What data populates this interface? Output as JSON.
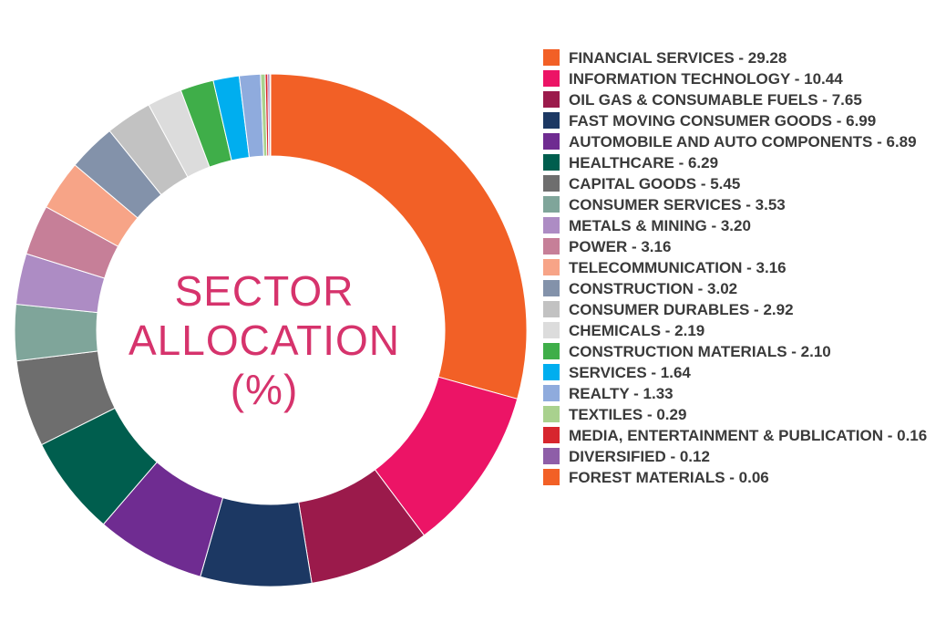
{
  "center_title_lines": [
    "SECTOR",
    "ALLOCATION",
    "(%)"
  ],
  "chart_data": {
    "type": "pie",
    "variant": "donut",
    "title": "SECTOR ALLOCATION (%)",
    "legend_position": "right",
    "slices": [
      {
        "label": "FINANCIAL SERVICES - 29.28",
        "name": "FINANCIAL SERVICES",
        "value": 29.28,
        "color": "#f26026"
      },
      {
        "label": "INFORMATION TECHNOLOGY - 10.44",
        "name": "INFORMATION TECHNOLOGY",
        "value": 10.44,
        "color": "#ec1466"
      },
      {
        "label": "OIL GAS & CONSUMABLE FUELS - 7.65",
        "name": "OIL GAS & CONSUMABLE FUELS",
        "value": 7.65,
        "color": "#9b1a4b"
      },
      {
        "label": "FAST MOVING CONSUMER GOODS - 6.99",
        "name": "FAST MOVING CONSUMER GOODS",
        "value": 6.99,
        "color": "#1c3863"
      },
      {
        "label": "AUTOMOBILE AND AUTO COMPONENTS - 6.89",
        "name": "AUTOMOBILE AND AUTO COMPONENTS",
        "value": 6.89,
        "color": "#6f2c91"
      },
      {
        "label": "HEALTHCARE - 6.29",
        "name": "HEALTHCARE",
        "value": 6.29,
        "color": "#005e4e"
      },
      {
        "label": "CAPITAL GOODS - 5.45",
        "name": "CAPITAL GOODS",
        "value": 5.45,
        "color": "#6e6e6e"
      },
      {
        "label": "CONSUMER SERVICES - 3.53",
        "name": "CONSUMER SERVICES",
        "value": 3.53,
        "color": "#7fa59a"
      },
      {
        "label": "METALS & MINING - 3.20",
        "name": "METALS & MINING",
        "value": 3.2,
        "color": "#ad8cc4"
      },
      {
        "label": "POWER - 3.16",
        "name": "POWER",
        "value": 3.16,
        "color": "#c67f98"
      },
      {
        "label": "TELECOMMUNICATION - 3.16",
        "name": "TELECOMMUNICATION",
        "value": 3.16,
        "color": "#f7a487"
      },
      {
        "label": "CONSTRUCTION - 3.02",
        "name": "CONSTRUCTION",
        "value": 3.02,
        "color": "#8392aa"
      },
      {
        "label": "CONSUMER DURABLES - 2.92",
        "name": "CONSUMER DURABLES",
        "value": 2.92,
        "color": "#c2c2c2"
      },
      {
        "label": "CHEMICALS - 2.19",
        "name": "CHEMICALS",
        "value": 2.19,
        "color": "#dcdcdc"
      },
      {
        "label": "CONSTRUCTION MATERIALS - 2.10",
        "name": "CONSTRUCTION MATERIALS",
        "value": 2.1,
        "color": "#3fae49"
      },
      {
        "label": "SERVICES - 1.64",
        "name": "SERVICES",
        "value": 1.64,
        "color": "#00aeef"
      },
      {
        "label": "REALTY - 1.33",
        "name": "REALTY",
        "value": 1.33,
        "color": "#8fabdd"
      },
      {
        "label": "TEXTILES - 0.29",
        "name": "TEXTILES",
        "value": 0.29,
        "color": "#a9d18e"
      },
      {
        "label": "MEDIA, ENTERTAINMENT & PUBLICATION - 0.16",
        "name": "MEDIA, ENTERTAINMENT & PUBLICATION",
        "value": 0.16,
        "color": "#d7262e"
      },
      {
        "label": "DIVERSIFIED - 0.12",
        "name": "DIVERSIFIED",
        "value": 0.12,
        "color": "#8e5ea8"
      },
      {
        "label": "FOREST MATERIALS - 0.06",
        "name": "FOREST MATERIALS",
        "value": 0.06,
        "color": "#f26026"
      }
    ]
  }
}
